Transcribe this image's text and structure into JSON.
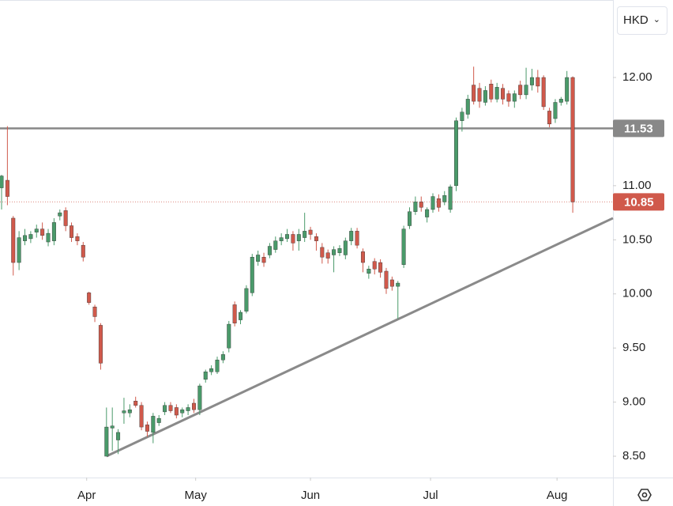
{
  "chart_data": {
    "type": "candlestick",
    "currency": "HKD",
    "up_color": "#4a9a6a",
    "down_color": "#d0594b",
    "open": [
      10.98,
      11.05,
      10.7,
      10.29,
      10.49,
      10.51,
      10.57,
      10.6,
      10.48,
      10.49,
      10.72,
      10.77,
      10.63,
      10.53,
      10.45,
      10.01,
      9.88,
      9.71,
      8.5,
      8.76,
      8.65,
      8.9,
      8.9,
      9.01,
      8.97,
      8.79,
      8.72,
      8.81,
      8.91,
      8.97,
      8.95,
      8.9,
      8.92,
      8.99,
      8.93,
      9.21,
      9.28,
      9.28,
      9.39,
      9.5,
      9.9,
      9.76,
      9.84,
      10.01,
      10.3,
      10.34,
      10.36,
      10.41,
      10.49,
      10.51,
      10.55,
      10.49,
      10.52,
      10.59,
      10.53,
      10.43,
      10.38,
      10.36,
      10.38,
      10.36,
      10.49,
      10.58,
      10.39,
      10.19,
      10.3,
      10.29,
      10.21,
      10.13,
      10.07,
      10.27,
      10.63,
      10.76,
      10.85,
      10.71,
      10.78,
      10.88,
      10.85,
      10.78,
      11.0,
      11.6,
      11.66,
      11.93,
      11.9,
      11.77,
      11.94,
      11.8,
      11.9,
      11.85,
      11.78,
      11.93,
      11.84,
      11.93,
      12.0,
      12.0,
      11.69,
      11.62,
      11.77,
      11.78,
      12.0
    ],
    "high": [
      11.1,
      11.55,
      10.72,
      10.58,
      10.6,
      10.58,
      10.64,
      10.66,
      10.6,
      10.7,
      10.78,
      10.8,
      10.66,
      10.56,
      10.48,
      10.02,
      9.9,
      9.73,
      8.95,
      8.95,
      8.75,
      9.04,
      8.98,
      9.05,
      9.0,
      8.82,
      8.9,
      8.88,
      9.0,
      9.0,
      8.98,
      8.95,
      8.98,
      9.03,
      9.17,
      9.3,
      9.34,
      9.42,
      9.47,
      9.75,
      9.93,
      9.85,
      10.08,
      10.37,
      10.4,
      10.38,
      10.47,
      10.53,
      10.56,
      10.6,
      10.58,
      10.6,
      10.75,
      10.62,
      10.56,
      10.47,
      10.41,
      10.44,
      10.45,
      10.52,
      10.61,
      10.61,
      10.42,
      10.26,
      10.33,
      10.32,
      10.24,
      10.16,
      10.12,
      10.63,
      10.8,
      10.9,
      10.9,
      10.8,
      10.93,
      10.92,
      10.95,
      11.01,
      11.63,
      11.72,
      11.84,
      12.1,
      11.95,
      11.92,
      11.98,
      11.95,
      11.94,
      11.88,
      11.88,
      11.97,
      12.09,
      12.08,
      12.07,
      12.02,
      11.72,
      11.8,
      11.82,
      12.06,
      12.01
    ],
    "low": [
      10.78,
      10.82,
      10.17,
      10.22,
      10.45,
      10.47,
      10.52,
      10.5,
      10.44,
      10.45,
      10.68,
      10.58,
      10.48,
      10.45,
      10.3,
      9.9,
      9.74,
      9.3,
      8.5,
      8.55,
      8.52,
      8.8,
      8.86,
      8.95,
      8.74,
      8.68,
      8.62,
      8.78,
      8.88,
      8.9,
      8.85,
      8.86,
      8.88,
      8.9,
      8.88,
      9.18,
      9.25,
      9.26,
      9.36,
      9.46,
      9.7,
      9.72,
      9.82,
      9.98,
      10.26,
      10.25,
      10.33,
      10.38,
      10.45,
      10.48,
      10.4,
      10.4,
      10.48,
      10.5,
      10.4,
      10.28,
      10.28,
      10.2,
      10.35,
      10.32,
      10.45,
      10.42,
      10.2,
      10.14,
      10.18,
      10.15,
      10.0,
      10.03,
      9.77,
      10.24,
      10.6,
      10.73,
      10.76,
      10.66,
      10.75,
      10.76,
      10.82,
      10.75,
      10.95,
      11.5,
      11.62,
      11.75,
      11.72,
      11.74,
      11.77,
      11.77,
      11.75,
      11.73,
      11.72,
      11.8,
      11.8,
      11.88,
      11.86,
      11.7,
      11.54,
      11.58,
      11.74,
      11.75,
      10.75
    ],
    "close": [
      11.09,
      10.9,
      10.29,
      10.52,
      10.54,
      10.55,
      10.6,
      10.54,
      10.56,
      10.66,
      10.75,
      10.63,
      10.52,
      10.49,
      10.34,
      9.92,
      9.79,
      9.36,
      8.77,
      8.78,
      8.72,
      8.92,
      8.93,
      8.97,
      8.77,
      8.73,
      8.87,
      8.85,
      8.97,
      8.92,
      8.88,
      8.93,
      8.95,
      8.93,
      9.15,
      9.28,
      9.31,
      9.39,
      9.44,
      9.72,
      9.73,
      9.83,
      10.05,
      10.34,
      10.36,
      10.29,
      10.44,
      10.49,
      10.52,
      10.55,
      10.47,
      10.55,
      10.58,
      10.55,
      10.49,
      10.34,
      10.33,
      10.41,
      10.42,
      10.49,
      10.58,
      10.45,
      10.29,
      10.23,
      10.23,
      10.2,
      10.05,
      10.07,
      10.1,
      10.6,
      10.76,
      10.85,
      10.8,
      10.78,
      10.9,
      10.8,
      10.91,
      10.99,
      11.6,
      11.68,
      11.8,
      11.78,
      11.78,
      11.88,
      11.8,
      11.91,
      11.8,
      11.78,
      11.85,
      11.84,
      11.93,
      12.0,
      11.92,
      11.73,
      11.57,
      11.77,
      11.8,
      12.0,
      10.85
    ],
    "xlim": [
      -0.27,
      104.9
    ],
    "xticks": [
      {
        "value": 14.6,
        "label": "Apr"
      },
      {
        "value": 33.3,
        "label": "May"
      },
      {
        "value": 53.0,
        "label": "Jun"
      },
      {
        "value": 73.6,
        "label": "Jul"
      },
      {
        "value": 95.3,
        "label": "Aug"
      }
    ],
    "ylim": [
      8.303,
      12.716
    ],
    "yticks": [
      {
        "value": 8.5,
        "label": "8.50"
      },
      {
        "value": 9,
        "label": "9.00"
      },
      {
        "value": 9.5,
        "label": "9.50"
      },
      {
        "value": 10,
        "label": "10.00"
      },
      {
        "value": 10.5,
        "label": "10.50"
      },
      {
        "value": 11,
        "label": "11.00"
      },
      {
        "value": 12,
        "label": "12.00"
      }
    ],
    "price_lines": [
      {
        "value": 11.53,
        "color": "#888888",
        "style": "solid"
      },
      {
        "value": 10.85,
        "color": "#d0594b",
        "style": "dotted"
      }
    ],
    "trendline": {
      "x": [
        18,
        104.9
      ],
      "y": [
        8.5,
        10.7
      ],
      "color": "#8a8a8a"
    }
  }
}
